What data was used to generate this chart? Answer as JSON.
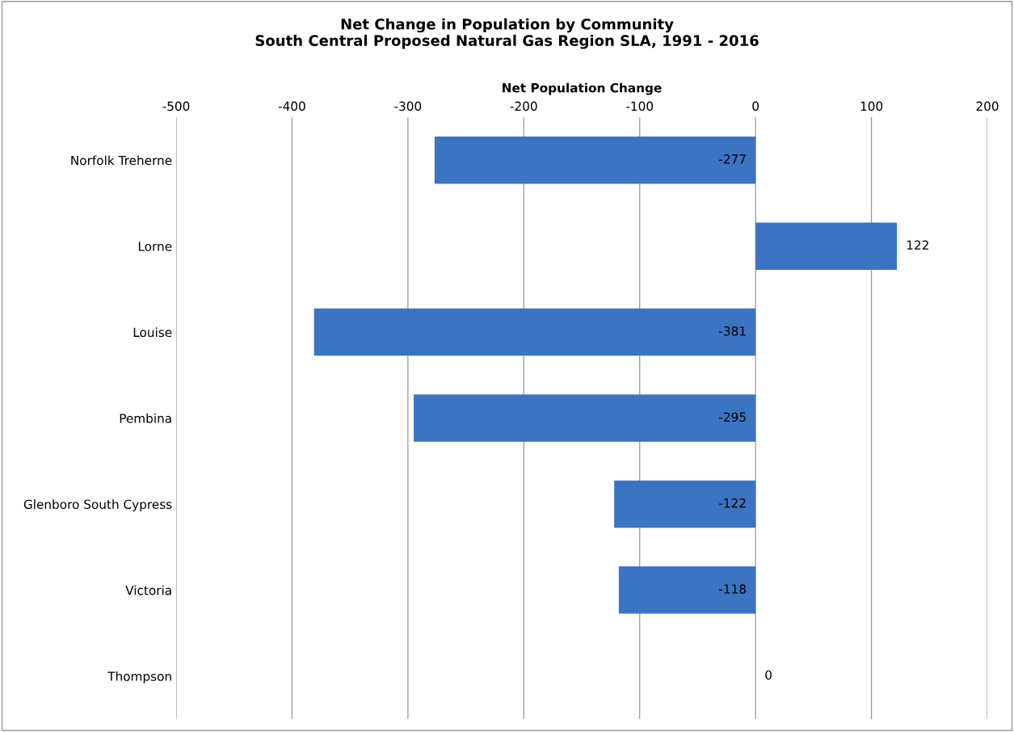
{
  "chart_data": {
    "type": "bar",
    "orientation": "horizontal",
    "title": "Net Change in Population by Community\nSouth Central Proposed Natural Gas Region SLA, 1991 - 2016",
    "xlabel": "Net Population Change",
    "categories": [
      "Norfolk Treherne",
      "Lorne",
      "Louise",
      "Pembina",
      "Glenboro South Cypress",
      "Victoria",
      "Thompson"
    ],
    "values": [
      -277,
      122,
      -381,
      -295,
      -122,
      -118,
      0
    ],
    "color": "#3b74c2",
    "xlim": [
      -500,
      200
    ],
    "xticks": [
      -500,
      -400,
      -300,
      -200,
      -100,
      0,
      100,
      200
    ],
    "grid": "x",
    "data_labels": true
  }
}
